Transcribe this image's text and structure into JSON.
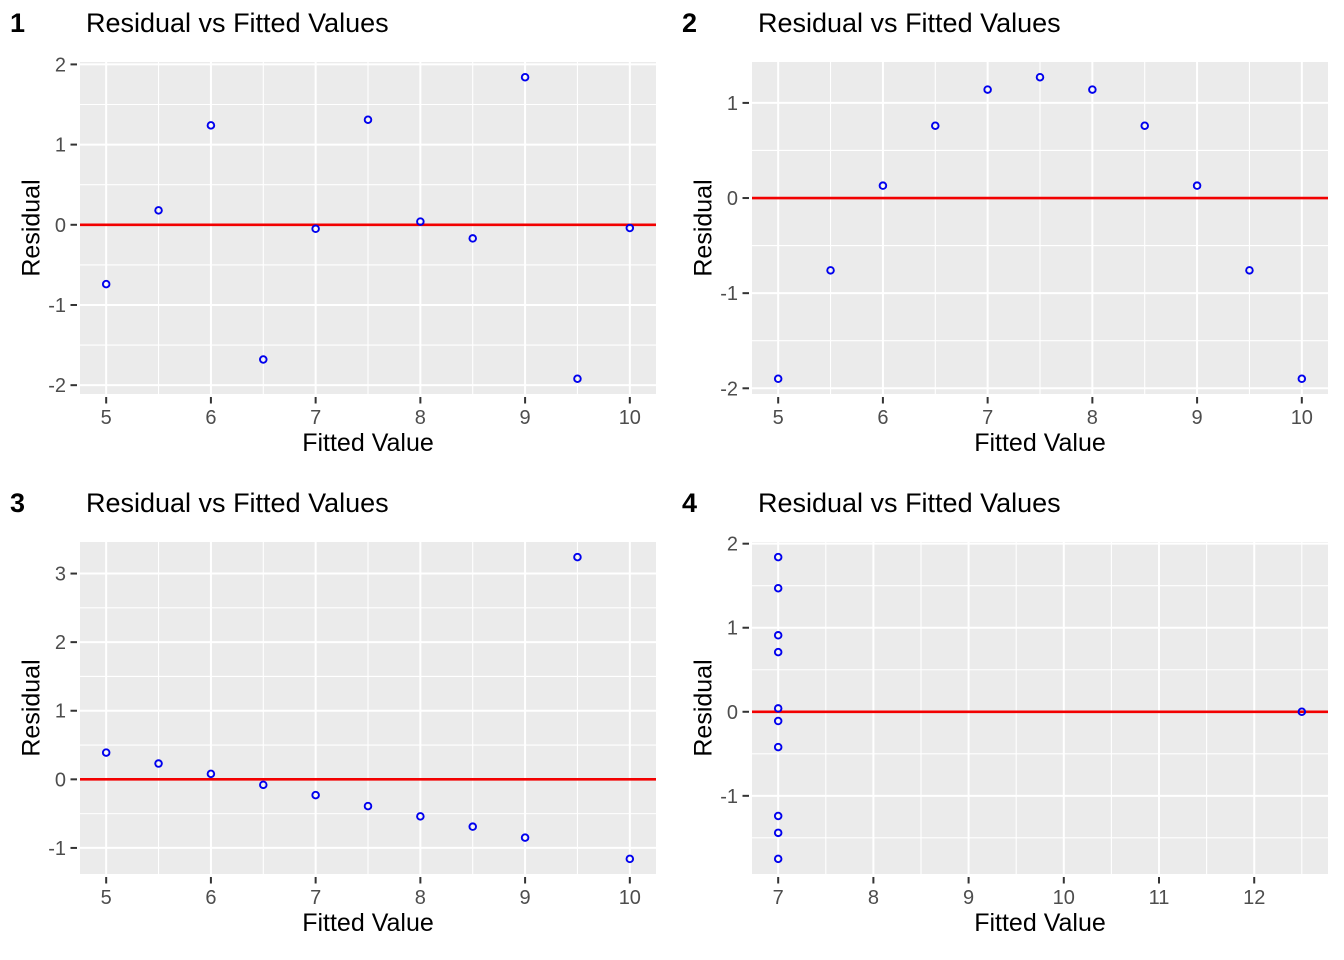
{
  "figure": {
    "background": "#FFFFFF",
    "rows": 2,
    "cols": 2
  },
  "styles": {
    "panel_bg": "#EBEBEB",
    "grid_major_color": "#FFFFFF",
    "grid_minor_color": "#FFFFFF",
    "point_color": "#0000EE",
    "zero_line_color": "#F20000",
    "tick_label_color": "#4D4D4D",
    "tick_mark_color": "#333333",
    "title_color": "#000000"
  },
  "chart_data": [
    {
      "type": "scatter",
      "tag": "1",
      "title": "Residual vs Fitted Values",
      "xlabel": "Fitted Value",
      "ylabel": "Residual",
      "legend": "none",
      "grid": "on",
      "xlim": [
        4.75,
        10.25
      ],
      "ylim": [
        -2.11,
        2.03
      ],
      "x_ticks": [
        5,
        6,
        7,
        8,
        9,
        10
      ],
      "y_ticks": [
        -2,
        -1,
        0,
        1,
        2
      ],
      "x_minor": [
        5.5,
        6.5,
        7.5,
        8.5,
        9.5
      ],
      "y_minor": [
        -1.5,
        -0.5,
        0.5,
        1.5
      ],
      "zero_line": 0,
      "points": [
        [
          5.0,
          -0.74
        ],
        [
          5.5,
          0.18
        ],
        [
          6.0,
          1.24
        ],
        [
          6.5,
          -1.68
        ],
        [
          7.0,
          -0.05
        ],
        [
          7.5,
          1.31
        ],
        [
          8.0,
          0.04
        ],
        [
          8.5,
          -0.17
        ],
        [
          9.0,
          1.84
        ],
        [
          9.5,
          -1.92
        ],
        [
          10.0,
          -0.04
        ]
      ]
    },
    {
      "type": "scatter",
      "tag": "2",
      "title": "Residual vs Fitted Values",
      "xlabel": "Fitted Value",
      "ylabel": "Residual",
      "legend": "none",
      "grid": "on",
      "xlim": [
        4.75,
        10.25
      ],
      "ylim": [
        -2.06,
        1.43
      ],
      "x_ticks": [
        5,
        6,
        7,
        8,
        9,
        10
      ],
      "y_ticks": [
        -2,
        -1,
        0,
        1
      ],
      "x_minor": [
        5.5,
        6.5,
        7.5,
        8.5,
        9.5
      ],
      "y_minor": [
        -1.5,
        -0.5,
        0.5
      ],
      "zero_line": 0,
      "points": [
        [
          5.0,
          -1.9
        ],
        [
          5.5,
          -0.76
        ],
        [
          6.0,
          0.13
        ],
        [
          6.5,
          0.76
        ],
        [
          7.0,
          1.14
        ],
        [
          7.5,
          1.27
        ],
        [
          8.0,
          1.14
        ],
        [
          8.5,
          0.76
        ],
        [
          9.0,
          0.13
        ],
        [
          9.5,
          -0.76
        ],
        [
          10.0,
          -1.9
        ]
      ]
    },
    {
      "type": "scatter",
      "tag": "3",
      "title": "Residual vs Fitted Values",
      "xlabel": "Fitted Value",
      "ylabel": "Residual",
      "legend": "none",
      "grid": "on",
      "xlim": [
        4.75,
        10.25
      ],
      "ylim": [
        -1.38,
        3.46
      ],
      "x_ticks": [
        5,
        6,
        7,
        8,
        9,
        10
      ],
      "y_ticks": [
        -1,
        0,
        1,
        2,
        3
      ],
      "x_minor": [
        5.5,
        6.5,
        7.5,
        8.5,
        9.5
      ],
      "y_minor": [
        -0.5,
        0.5,
        1.5,
        2.5
      ],
      "zero_line": 0,
      "points": [
        [
          5.0,
          0.39
        ],
        [
          5.5,
          0.23
        ],
        [
          6.0,
          0.08
        ],
        [
          6.5,
          -0.08
        ],
        [
          7.0,
          -0.23
        ],
        [
          7.5,
          -0.39
        ],
        [
          8.0,
          -0.54
        ],
        [
          8.5,
          -0.69
        ],
        [
          9.0,
          -0.85
        ],
        [
          9.5,
          3.24
        ],
        [
          10.0,
          -1.16
        ]
      ]
    },
    {
      "type": "scatter",
      "tag": "4",
      "title": "Residual vs Fitted Values",
      "xlabel": "Fitted Value",
      "ylabel": "Residual",
      "legend": "none",
      "grid": "on",
      "xlim": [
        6.725,
        12.775
      ],
      "ylim": [
        -1.93,
        2.02
      ],
      "x_ticks": [
        7,
        8,
        9,
        10,
        11,
        12
      ],
      "y_ticks": [
        -1,
        0,
        1,
        2
      ],
      "x_minor": [
        7.5,
        8.5,
        9.5,
        10.5,
        11.5,
        12.5
      ],
      "y_minor": [
        -1.5,
        -0.5,
        0.5,
        1.5
      ],
      "zero_line": 0,
      "points": [
        [
          7.0,
          1.84
        ],
        [
          7.0,
          1.47
        ],
        [
          7.0,
          0.91
        ],
        [
          7.0,
          0.71
        ],
        [
          7.0,
          0.04
        ],
        [
          7.0,
          -0.11
        ],
        [
          7.0,
          -0.42
        ],
        [
          7.0,
          -1.24
        ],
        [
          7.0,
          -1.44
        ],
        [
          7.0,
          -1.75
        ],
        [
          12.5,
          0.0
        ]
      ]
    }
  ]
}
